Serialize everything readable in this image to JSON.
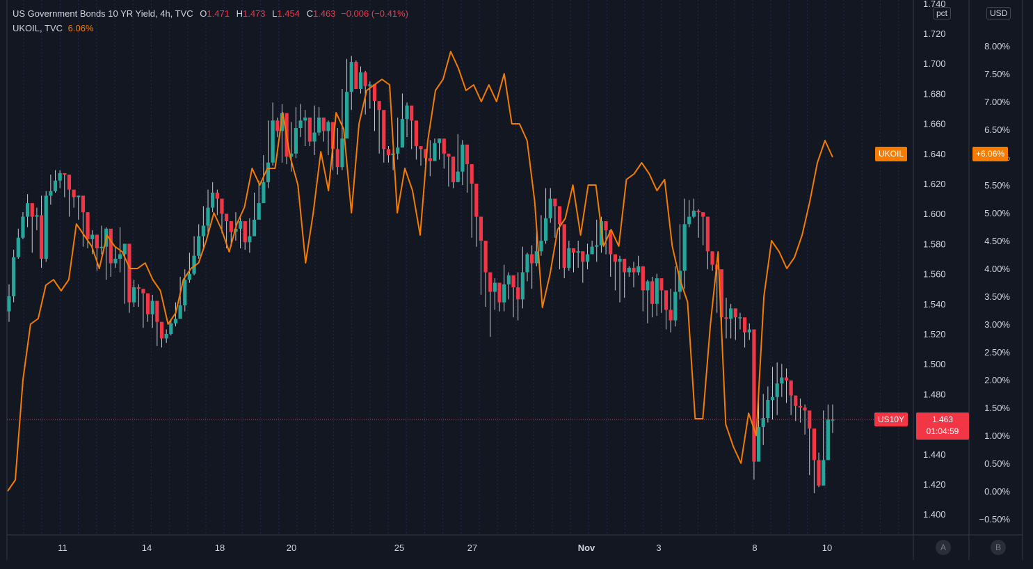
{
  "legend": {
    "series1": {
      "title": "US Government Bonds 10 YR Yield, 4h, TVC",
      "open_label": "O",
      "open": "1.471",
      "high_label": "H",
      "high": "1.473",
      "low_label": "L",
      "low": "1.454",
      "close_label": "C",
      "close": "1.463",
      "change": "−0.006 (−0.41%)"
    },
    "series2": {
      "title": "UKOIL, TVC",
      "value": "6.06%"
    }
  },
  "scales": {
    "left_unit": "pct",
    "right_unit": "USD",
    "button_a": "A",
    "button_b": "B"
  },
  "tags": {
    "ukoil_name": "UKOIL",
    "ukoil_value": "+6.06%",
    "us10y_name": "US10Y",
    "us10y_price": "1.463",
    "us10y_countdown": "01:04:59"
  },
  "colors": {
    "background": "#131722",
    "up": "#26a69a",
    "down": "#f23645",
    "oil": "#f57c00",
    "grid": "#1e2a55"
  },
  "chart_data": {
    "type": "line",
    "title": "US Government Bonds 10 YR Yield, 4h, TVC",
    "x_ticks": [
      "11",
      "14",
      "18",
      "20",
      "25",
      "27",
      "Nov",
      "3",
      "8",
      "10"
    ],
    "y_left": {
      "label": "pct",
      "range": [
        1.4,
        1.74
      ],
      "ticks": [
        "1.400",
        "1.420",
        "1.440",
        "1.460",
        "1.480",
        "1.500",
        "1.520",
        "1.540",
        "1.560",
        "1.580",
        "1.600",
        "1.620",
        "1.640",
        "1.660",
        "1.680",
        "1.700",
        "1.720",
        "1.740"
      ]
    },
    "y_right": {
      "label": "USD",
      "range": [
        -0.5,
        8.0
      ],
      "ticks": [
        "−0.50%",
        "0.00%",
        "0.50%",
        "1.00%",
        "1.50%",
        "2.00%",
        "2.50%",
        "3.00%",
        "3.50%",
        "4.00%",
        "4.50%",
        "5.00%",
        "5.50%",
        "6.00%",
        "6.50%",
        "7.00%",
        "7.50%",
        "8.00%"
      ]
    },
    "grid": true,
    "series": [
      {
        "name": "US10Y",
        "kind": "candlestick",
        "close": [
          1.545,
          1.571,
          1.584,
          1.598,
          1.607,
          1.598,
          1.599,
          1.57,
          1.612,
          1.615,
          1.622,
          1.627,
          1.626,
          1.616,
          1.611,
          1.612,
          1.601,
          1.583,
          1.586,
          1.577,
          1.578,
          1.59,
          1.567,
          1.57,
          1.573,
          1.58,
          1.541,
          1.551,
          1.55,
          1.547,
          1.533,
          1.542,
          1.528,
          1.517,
          1.52,
          1.527,
          1.53,
          1.539,
          1.556,
          1.56,
          1.572,
          1.585,
          1.592,
          1.604,
          1.614,
          1.61,
          1.6,
          1.595,
          1.588,
          1.59,
          1.595,
          1.581,
          1.585,
          1.596,
          1.607,
          1.621,
          1.634,
          1.662,
          1.655,
          1.667,
          1.638,
          1.64,
          1.657,
          1.662,
          1.664,
          1.648,
          1.654,
          1.664,
          1.655,
          1.661,
          1.643,
          1.631,
          1.65,
          1.681,
          1.701,
          1.683,
          1.694,
          1.685,
          1.686,
          1.675,
          1.669,
          1.643,
          1.639,
          1.64,
          1.644,
          1.663,
          1.672,
          1.662,
          1.645,
          1.643,
          1.637,
          1.635,
          1.647,
          1.65,
          1.64,
          1.638,
          1.621,
          1.628,
          1.646,
          1.633,
          1.62,
          1.598,
          1.582,
          1.561,
          1.548,
          1.554,
          1.541,
          1.553,
          1.559,
          1.551,
          1.543,
          1.561,
          1.573,
          1.567,
          1.575,
          1.582,
          1.597,
          1.61,
          1.605,
          1.593,
          1.564,
          1.577,
          1.574,
          1.575,
          1.568,
          1.573,
          1.578,
          1.579,
          1.595,
          1.589,
          1.573,
          1.568,
          1.57,
          1.561,
          1.564,
          1.561,
          1.565,
          1.549,
          1.555,
          1.54,
          1.557,
          1.549,
          1.536,
          1.529,
          1.548,
          1.562,
          1.593,
          1.598,
          1.602,
          1.601,
          1.598,
          1.575,
          1.566,
          1.563,
          1.531,
          1.53,
          1.537,
          1.531,
          1.531,
          1.521,
          1.523,
          1.435,
          1.458,
          1.464,
          1.476,
          1.478,
          1.487,
          1.491,
          1.489,
          1.479,
          1.472,
          1.471,
          1.469,
          1.457,
          1.436,
          1.419,
          1.436,
          1.463,
          1.463
        ],
        "high": [
          1.553,
          1.576,
          1.59,
          1.601,
          1.613,
          1.602,
          1.604,
          1.612,
          1.615,
          1.626,
          1.629,
          1.629,
          1.626,
          1.623,
          1.614,
          1.612,
          1.603,
          1.593,
          1.589,
          1.583,
          1.592,
          1.591,
          1.572,
          1.578,
          1.591,
          1.58,
          1.545,
          1.556,
          1.553,
          1.547,
          1.537,
          1.546,
          1.53,
          1.52,
          1.523,
          1.53,
          1.541,
          1.558,
          1.563,
          1.574,
          1.585,
          1.593,
          1.605,
          1.616,
          1.621,
          1.616,
          1.603,
          1.597,
          1.595,
          1.601,
          1.598,
          1.587,
          1.597,
          1.614,
          1.622,
          1.639,
          1.662,
          1.674,
          1.664,
          1.673,
          1.64,
          1.661,
          1.671,
          1.673,
          1.669,
          1.658,
          1.672,
          1.671,
          1.663,
          1.662,
          1.648,
          1.657,
          1.683,
          1.703,
          1.705,
          1.702,
          1.698,
          1.695,
          1.688,
          1.679,
          1.673,
          1.655,
          1.645,
          1.644,
          1.664,
          1.68,
          1.674,
          1.665,
          1.648,
          1.644,
          1.643,
          1.649,
          1.65,
          1.65,
          1.642,
          1.638,
          1.63,
          1.653,
          1.649,
          1.634,
          1.62,
          1.6,
          1.583,
          1.564,
          1.551,
          1.557,
          1.554,
          1.566,
          1.561,
          1.554,
          1.561,
          1.578,
          1.574,
          1.579,
          1.588,
          1.599,
          1.617,
          1.617,
          1.607,
          1.596,
          1.58,
          1.582,
          1.576,
          1.582,
          1.573,
          1.58,
          1.582,
          1.596,
          1.598,
          1.592,
          1.574,
          1.571,
          1.572,
          1.563,
          1.565,
          1.568,
          1.572,
          1.559,
          1.556,
          1.558,
          1.56,
          1.551,
          1.541,
          1.55,
          1.565,
          1.593,
          1.61,
          1.609,
          1.61,
          1.603,
          1.599,
          1.58,
          1.566,
          1.563,
          1.534,
          1.544,
          1.54,
          1.533,
          1.534,
          1.525,
          1.527,
          1.47,
          1.48,
          1.48,
          1.485,
          1.498,
          1.501,
          1.5,
          1.497,
          1.482,
          1.478,
          1.477,
          1.473,
          1.462,
          1.439,
          1.441,
          1.469,
          1.473,
          1.473
        ],
        "low": [
          1.528,
          1.541,
          1.57,
          1.583,
          1.591,
          1.574,
          1.589,
          1.564,
          1.568,
          1.606,
          1.614,
          1.617,
          1.611,
          1.598,
          1.604,
          1.596,
          1.578,
          1.577,
          1.573,
          1.562,
          1.573,
          1.556,
          1.558,
          1.564,
          1.561,
          1.54,
          1.534,
          1.538,
          1.538,
          1.524,
          1.528,
          1.524,
          1.512,
          1.511,
          1.514,
          1.519,
          1.525,
          1.532,
          1.535,
          1.554,
          1.559,
          1.57,
          1.577,
          1.587,
          1.601,
          1.599,
          1.587,
          1.577,
          1.578,
          1.582,
          1.577,
          1.576,
          1.574,
          1.588,
          1.599,
          1.61,
          1.617,
          1.632,
          1.651,
          1.634,
          1.633,
          1.628,
          1.637,
          1.651,
          1.645,
          1.645,
          1.639,
          1.652,
          1.648,
          1.639,
          1.629,
          1.626,
          1.629,
          1.652,
          1.669,
          1.683,
          1.68,
          1.666,
          1.67,
          1.655,
          1.64,
          1.634,
          1.634,
          1.629,
          1.636,
          1.654,
          1.651,
          1.643,
          1.636,
          1.632,
          1.629,
          1.625,
          1.638,
          1.636,
          1.63,
          1.618,
          1.617,
          1.621,
          1.619,
          1.614,
          1.584,
          1.578,
          1.546,
          1.538,
          1.518,
          1.536,
          1.535,
          1.535,
          1.543,
          1.531,
          1.529,
          1.537,
          1.555,
          1.55,
          1.565,
          1.572,
          1.58,
          1.594,
          1.584,
          1.563,
          1.557,
          1.562,
          1.561,
          1.564,
          1.554,
          1.563,
          1.576,
          1.568,
          1.574,
          1.573,
          1.558,
          1.549,
          1.541,
          1.544,
          1.558,
          1.551,
          1.559,
          1.535,
          1.527,
          1.531,
          1.532,
          1.534,
          1.523,
          1.521,
          1.525,
          1.543,
          1.55,
          1.591,
          1.597,
          1.584,
          1.579,
          1.563,
          1.562,
          1.534,
          1.526,
          1.517,
          1.517,
          1.516,
          1.523,
          1.511,
          1.516,
          1.423,
          1.435,
          1.446,
          1.461,
          1.463,
          1.466,
          1.478,
          1.474,
          1.466,
          1.462,
          1.461,
          1.453,
          1.426,
          1.414,
          1.418,
          1.431,
          1.449,
          1.454
        ]
      },
      {
        "name": "UKOIL",
        "kind": "line",
        "values": [
          0.0,
          0.2,
          2.0,
          3.0,
          3.1,
          3.7,
          3.8,
          3.6,
          3.8,
          4.8,
          4.6,
          4.4,
          4.0,
          4.6,
          4.4,
          4.3,
          4.0,
          4.0,
          4.1,
          3.8,
          3.6,
          3.0,
          3.2,
          3.8,
          4.0,
          4.1,
          4.5,
          5.0,
          4.7,
          4.3,
          4.8,
          5.1,
          5.8,
          5.5,
          5.8,
          5.8,
          6.8,
          6.0,
          5.5,
          4.1,
          5.0,
          6.1,
          5.4,
          6.8,
          6.5,
          5.0,
          6.6,
          7.2,
          7.3,
          7.4,
          7.3,
          5.0,
          5.8,
          5.4,
          4.6,
          6.3,
          7.2,
          7.4,
          7.9,
          7.6,
          7.2,
          7.3,
          7.0,
          7.3,
          7.0,
          7.5,
          6.6,
          6.6,
          6.3,
          5.2,
          3.3,
          3.9,
          4.7,
          4.9,
          5.5,
          4.6,
          5.5,
          5.5,
          4.4,
          4.7,
          4.4,
          5.6,
          5.7,
          5.9,
          5.7,
          5.4,
          5.6,
          4.4,
          3.8,
          3.4,
          1.3,
          1.3,
          3.0,
          4.3,
          1.2,
          0.8,
          0.5,
          1.4,
          1.0,
          3.5,
          4.5,
          4.3,
          4.0,
          4.2,
          4.6,
          5.2,
          5.9,
          6.3,
          6.0
        ],
        "last": 6.06
      }
    ]
  }
}
